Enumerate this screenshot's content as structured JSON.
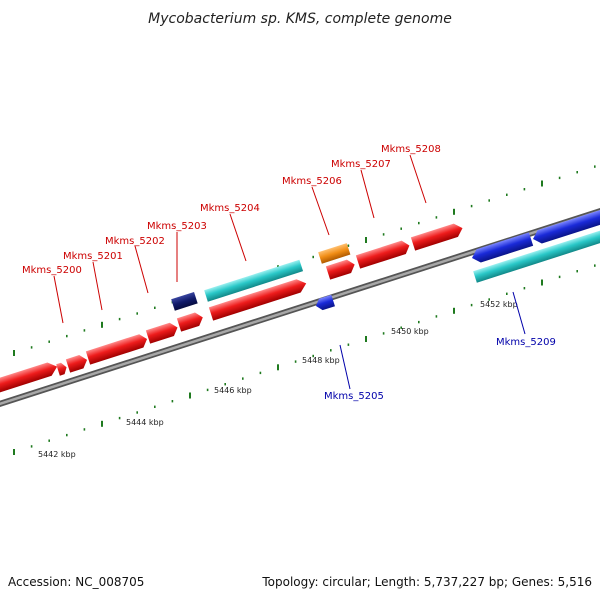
{
  "title": "Mycobacterium sp. KMS, complete genome",
  "footer": {
    "accession": "Accession: NC_008705",
    "summary": "Topology: circular; Length: 5,737,227 bp; Genes: 5,516"
  },
  "scale_labels": [
    "5442 kbp",
    "5444 kbp",
    "5446 kbp",
    "5448 kbp",
    "5450 kbp",
    "5452 kbp"
  ],
  "gene_labels": [
    {
      "text": "Mkms_5200",
      "strand": "forward"
    },
    {
      "text": "Mkms_5201",
      "strand": "forward"
    },
    {
      "text": "Mkms_5202",
      "strand": "forward"
    },
    {
      "text": "Mkms_5203",
      "strand": "forward"
    },
    {
      "text": "Mkms_5204",
      "strand": "forward"
    },
    {
      "text": "Mkms_5205",
      "strand": "reverse"
    },
    {
      "text": "Mkms_5206",
      "strand": "forward"
    },
    {
      "text": "Mkms_5207",
      "strand": "forward"
    },
    {
      "text": "Mkms_5208",
      "strand": "forward"
    },
    {
      "text": "Mkms_5209",
      "strand": "reverse"
    }
  ],
  "colors": {
    "forward_gene": "#ee1c1c",
    "reverse_gene": "#1a2ad8",
    "cyan_gene": "#2ac8c8",
    "navy_gene": "#101a6a",
    "orange_gene": "#f08c14",
    "forward_label": "#cc0000",
    "reverse_label": "#0000aa",
    "tick": "#1f7a1f",
    "backbone": "#8c8c8c"
  }
}
